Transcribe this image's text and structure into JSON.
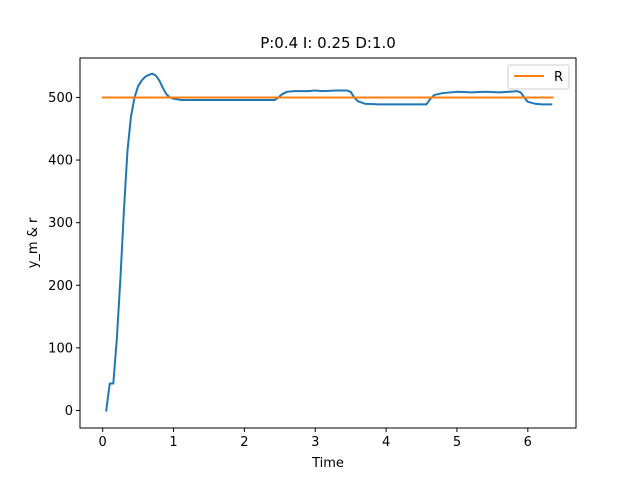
{
  "chart_data": {
    "type": "line",
    "title": "P:0.4 I: 0.25 D:1.0",
    "xlabel": "Time",
    "ylabel": "y_m & r",
    "xlim": [
      -0.32,
      6.68
    ],
    "ylim": [
      -28,
      563
    ],
    "xticks": [
      0,
      1,
      2,
      3,
      4,
      5,
      6
    ],
    "yticks": [
      0,
      100,
      200,
      300,
      400,
      500
    ],
    "grid": false,
    "legend": {
      "position": "top-right",
      "entries": [
        "R"
      ]
    },
    "series": [
      {
        "name": "",
        "color": "#1f77b4",
        "points": [
          [
            0.05,
            0
          ],
          [
            0.1,
            43
          ],
          [
            0.15,
            43
          ],
          [
            0.2,
            115
          ],
          [
            0.25,
            210
          ],
          [
            0.3,
            320
          ],
          [
            0.35,
            415
          ],
          [
            0.4,
            470
          ],
          [
            0.45,
            500
          ],
          [
            0.5,
            518
          ],
          [
            0.55,
            527
          ],
          [
            0.6,
            533
          ],
          [
            0.65,
            536
          ],
          [
            0.7,
            538
          ],
          [
            0.75,
            535
          ],
          [
            0.8,
            527
          ],
          [
            0.85,
            515
          ],
          [
            0.9,
            505
          ],
          [
            0.95,
            500
          ],
          [
            1.0,
            498
          ],
          [
            1.1,
            496
          ],
          [
            1.3,
            496
          ],
          [
            1.6,
            496
          ],
          [
            2.0,
            496
          ],
          [
            2.3,
            496
          ],
          [
            2.43,
            496
          ],
          [
            2.48,
            500
          ],
          [
            2.53,
            505
          ],
          [
            2.6,
            509
          ],
          [
            2.7,
            510
          ],
          [
            2.9,
            510
          ],
          [
            3.0,
            511
          ],
          [
            3.1,
            510
          ],
          [
            3.3,
            511
          ],
          [
            3.45,
            511
          ],
          [
            3.5,
            509
          ],
          [
            3.55,
            500
          ],
          [
            3.6,
            494
          ],
          [
            3.7,
            490
          ],
          [
            3.9,
            489
          ],
          [
            4.2,
            489
          ],
          [
            4.5,
            489
          ],
          [
            4.57,
            489
          ],
          [
            4.62,
            497
          ],
          [
            4.68,
            504
          ],
          [
            4.8,
            507
          ],
          [
            5.0,
            509
          ],
          [
            5.2,
            508
          ],
          [
            5.4,
            509
          ],
          [
            5.6,
            508
          ],
          [
            5.85,
            510
          ],
          [
            5.9,
            508
          ],
          [
            5.95,
            500
          ],
          [
            6.0,
            493
          ],
          [
            6.1,
            490
          ],
          [
            6.2,
            489
          ],
          [
            6.33,
            489
          ]
        ]
      },
      {
        "name": "R",
        "color": "#ff7f0e",
        "points": [
          [
            0.0,
            500
          ],
          [
            6.35,
            500
          ]
        ]
      }
    ]
  }
}
